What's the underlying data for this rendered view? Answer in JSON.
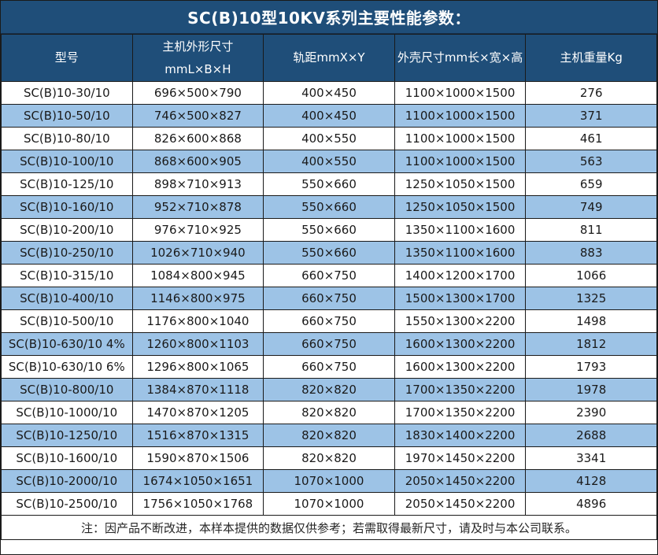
{
  "title": "SC(B)10型10KV系列主要性能参数：",
  "colors": {
    "header_bg": "#1F4E79",
    "alt_row_bg": "#9DC3E6",
    "row_bg": "#FFFFFF",
    "border": "#1A1A1A",
    "header_text": "#FFFFFF",
    "body_text": "#1A1A1A"
  },
  "table": {
    "headers": [
      {
        "lines": [
          "型号"
        ]
      },
      {
        "lines": [
          "主机外形尺寸",
          "mmL×B×H"
        ]
      },
      {
        "lines": [
          "轨距mmX×Y"
        ]
      },
      {
        "lines": [
          "外壳尺寸mm长×宽×高"
        ]
      },
      {
        "lines": [
          "主机重量Kg"
        ]
      }
    ],
    "rows": [
      [
        "SC(B)10-30/10",
        "696×500×790",
        "400×450",
        "1100×1000×1500",
        "276"
      ],
      [
        "SC(B)10-50/10",
        "746×500×827",
        "400×450",
        "1100×1000×1500",
        "371"
      ],
      [
        "SC(B)10-80/10",
        "826×600×868",
        "400×550",
        "1100×1000×1500",
        "461"
      ],
      [
        "SC(B)10-100/10",
        "868×600×905",
        "400×550",
        "1100×1000×1500",
        "563"
      ],
      [
        "SC(B)10-125/10",
        "898×710×913",
        "550×660",
        "1250×1050×1500",
        "659"
      ],
      [
        "SC(B)10-160/10",
        "952×710×878",
        "550×660",
        "1250×1050×1500",
        "749"
      ],
      [
        "SC(B)10-200/10",
        "976×710×925",
        "550×660",
        "1350×1100×1600",
        "811"
      ],
      [
        "SC(B)10-250/10",
        "1026×710×940",
        "550×660",
        "1350×1100×1600",
        "883"
      ],
      [
        "SC(B)10-315/10",
        "1084×800×945",
        "660×750",
        "1400×1200×1700",
        "1066"
      ],
      [
        "SC(B)10-400/10",
        "1146×800×975",
        "660×750",
        "1500×1300×1700",
        "1325"
      ],
      [
        "SC(B)10-500/10",
        "1176×800×1040",
        "660×750",
        "1550×1300×2200",
        "1498"
      ],
      [
        "SC(B)10-630/10 4%",
        "1260×800×1103",
        "660×750",
        "1600×1300×2200",
        "1812"
      ],
      [
        "SC(B)10-630/10 6%",
        "1296×800×1065",
        "660×750",
        "1600×1300×2200",
        "1793"
      ],
      [
        "SC(B)10-800/10",
        "1384×870×1118",
        "820×820",
        "1700×1350×2200",
        "1978"
      ],
      [
        "SC(B)10-1000/10",
        "1470×870×1205",
        "820×820",
        "1700×1350×2200",
        "2390"
      ],
      [
        "SC(B)10-1250/10",
        "1516×870×1315",
        "820×820",
        "1830×1400×2200",
        "2688"
      ],
      [
        "SC(B)10-1600/10",
        "1590×870×1506",
        "820×820",
        "1970×1450×2200",
        "3341"
      ],
      [
        "SC(B)10-2000/10",
        "1674×1050×1651",
        "1070×1000",
        "2050×1450×2200",
        "4128"
      ],
      [
        "SC(B)10-2500/10",
        "1756×1050×1768",
        "1070×1000",
        "2050×1450×2200",
        "4896"
      ]
    ]
  },
  "footer": {
    "note": "注：因产品不断改进，本样本提供的数据仅供参考；若需取得最新尺寸，请及时与本公司联系。"
  }
}
